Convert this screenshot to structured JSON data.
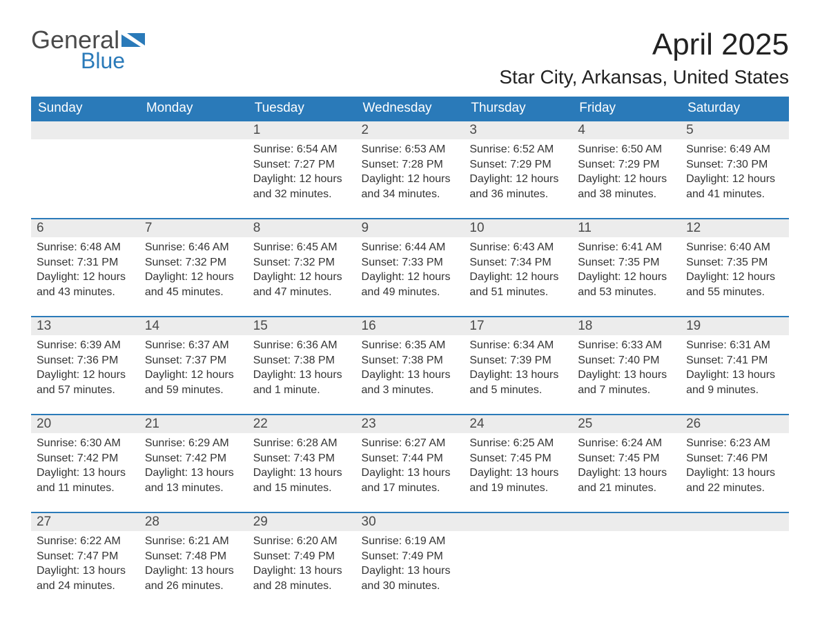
{
  "logo": {
    "word1": "General",
    "word2": "Blue"
  },
  "header": {
    "month_title": "April 2025",
    "location": "Star City, Arkansas, United States"
  },
  "colors": {
    "header_bg": "#2a7ab9",
    "header_text": "#ffffff",
    "daynum_bg": "#ececec",
    "row_border": "#2a7ab9",
    "body_text": "#333333",
    "logo_gray": "#4a4a4a",
    "logo_blue": "#2a7ab9",
    "page_bg": "#ffffff"
  },
  "typography": {
    "month_title_pt": 44,
    "location_pt": 28,
    "dayname_pt": 19,
    "daynum_pt": 19,
    "body_pt": 16
  },
  "day_names": [
    "Sunday",
    "Monday",
    "Tuesday",
    "Wednesday",
    "Thursday",
    "Friday",
    "Saturday"
  ],
  "weeks": [
    [
      null,
      null,
      {
        "n": "1",
        "sunrise": "Sunrise: 6:54 AM",
        "sunset": "Sunset: 7:27 PM",
        "day1": "Daylight: 12 hours",
        "day2": "and 32 minutes."
      },
      {
        "n": "2",
        "sunrise": "Sunrise: 6:53 AM",
        "sunset": "Sunset: 7:28 PM",
        "day1": "Daylight: 12 hours",
        "day2": "and 34 minutes."
      },
      {
        "n": "3",
        "sunrise": "Sunrise: 6:52 AM",
        "sunset": "Sunset: 7:29 PM",
        "day1": "Daylight: 12 hours",
        "day2": "and 36 minutes."
      },
      {
        "n": "4",
        "sunrise": "Sunrise: 6:50 AM",
        "sunset": "Sunset: 7:29 PM",
        "day1": "Daylight: 12 hours",
        "day2": "and 38 minutes."
      },
      {
        "n": "5",
        "sunrise": "Sunrise: 6:49 AM",
        "sunset": "Sunset: 7:30 PM",
        "day1": "Daylight: 12 hours",
        "day2": "and 41 minutes."
      }
    ],
    [
      {
        "n": "6",
        "sunrise": "Sunrise: 6:48 AM",
        "sunset": "Sunset: 7:31 PM",
        "day1": "Daylight: 12 hours",
        "day2": "and 43 minutes."
      },
      {
        "n": "7",
        "sunrise": "Sunrise: 6:46 AM",
        "sunset": "Sunset: 7:32 PM",
        "day1": "Daylight: 12 hours",
        "day2": "and 45 minutes."
      },
      {
        "n": "8",
        "sunrise": "Sunrise: 6:45 AM",
        "sunset": "Sunset: 7:32 PM",
        "day1": "Daylight: 12 hours",
        "day2": "and 47 minutes."
      },
      {
        "n": "9",
        "sunrise": "Sunrise: 6:44 AM",
        "sunset": "Sunset: 7:33 PM",
        "day1": "Daylight: 12 hours",
        "day2": "and 49 minutes."
      },
      {
        "n": "10",
        "sunrise": "Sunrise: 6:43 AM",
        "sunset": "Sunset: 7:34 PM",
        "day1": "Daylight: 12 hours",
        "day2": "and 51 minutes."
      },
      {
        "n": "11",
        "sunrise": "Sunrise: 6:41 AM",
        "sunset": "Sunset: 7:35 PM",
        "day1": "Daylight: 12 hours",
        "day2": "and 53 minutes."
      },
      {
        "n": "12",
        "sunrise": "Sunrise: 6:40 AM",
        "sunset": "Sunset: 7:35 PM",
        "day1": "Daylight: 12 hours",
        "day2": "and 55 minutes."
      }
    ],
    [
      {
        "n": "13",
        "sunrise": "Sunrise: 6:39 AM",
        "sunset": "Sunset: 7:36 PM",
        "day1": "Daylight: 12 hours",
        "day2": "and 57 minutes."
      },
      {
        "n": "14",
        "sunrise": "Sunrise: 6:37 AM",
        "sunset": "Sunset: 7:37 PM",
        "day1": "Daylight: 12 hours",
        "day2": "and 59 minutes."
      },
      {
        "n": "15",
        "sunrise": "Sunrise: 6:36 AM",
        "sunset": "Sunset: 7:38 PM",
        "day1": "Daylight: 13 hours",
        "day2": "and 1 minute."
      },
      {
        "n": "16",
        "sunrise": "Sunrise: 6:35 AM",
        "sunset": "Sunset: 7:38 PM",
        "day1": "Daylight: 13 hours",
        "day2": "and 3 minutes."
      },
      {
        "n": "17",
        "sunrise": "Sunrise: 6:34 AM",
        "sunset": "Sunset: 7:39 PM",
        "day1": "Daylight: 13 hours",
        "day2": "and 5 minutes."
      },
      {
        "n": "18",
        "sunrise": "Sunrise: 6:33 AM",
        "sunset": "Sunset: 7:40 PM",
        "day1": "Daylight: 13 hours",
        "day2": "and 7 minutes."
      },
      {
        "n": "19",
        "sunrise": "Sunrise: 6:31 AM",
        "sunset": "Sunset: 7:41 PM",
        "day1": "Daylight: 13 hours",
        "day2": "and 9 minutes."
      }
    ],
    [
      {
        "n": "20",
        "sunrise": "Sunrise: 6:30 AM",
        "sunset": "Sunset: 7:42 PM",
        "day1": "Daylight: 13 hours",
        "day2": "and 11 minutes."
      },
      {
        "n": "21",
        "sunrise": "Sunrise: 6:29 AM",
        "sunset": "Sunset: 7:42 PM",
        "day1": "Daylight: 13 hours",
        "day2": "and 13 minutes."
      },
      {
        "n": "22",
        "sunrise": "Sunrise: 6:28 AM",
        "sunset": "Sunset: 7:43 PM",
        "day1": "Daylight: 13 hours",
        "day2": "and 15 minutes."
      },
      {
        "n": "23",
        "sunrise": "Sunrise: 6:27 AM",
        "sunset": "Sunset: 7:44 PM",
        "day1": "Daylight: 13 hours",
        "day2": "and 17 minutes."
      },
      {
        "n": "24",
        "sunrise": "Sunrise: 6:25 AM",
        "sunset": "Sunset: 7:45 PM",
        "day1": "Daylight: 13 hours",
        "day2": "and 19 minutes."
      },
      {
        "n": "25",
        "sunrise": "Sunrise: 6:24 AM",
        "sunset": "Sunset: 7:45 PM",
        "day1": "Daylight: 13 hours",
        "day2": "and 21 minutes."
      },
      {
        "n": "26",
        "sunrise": "Sunrise: 6:23 AM",
        "sunset": "Sunset: 7:46 PM",
        "day1": "Daylight: 13 hours",
        "day2": "and 22 minutes."
      }
    ],
    [
      {
        "n": "27",
        "sunrise": "Sunrise: 6:22 AM",
        "sunset": "Sunset: 7:47 PM",
        "day1": "Daylight: 13 hours",
        "day2": "and 24 minutes."
      },
      {
        "n": "28",
        "sunrise": "Sunrise: 6:21 AM",
        "sunset": "Sunset: 7:48 PM",
        "day1": "Daylight: 13 hours",
        "day2": "and 26 minutes."
      },
      {
        "n": "29",
        "sunrise": "Sunrise: 6:20 AM",
        "sunset": "Sunset: 7:49 PM",
        "day1": "Daylight: 13 hours",
        "day2": "and 28 minutes."
      },
      {
        "n": "30",
        "sunrise": "Sunrise: 6:19 AM",
        "sunset": "Sunset: 7:49 PM",
        "day1": "Daylight: 13 hours",
        "day2": "and 30 minutes."
      },
      null,
      null,
      null
    ]
  ]
}
